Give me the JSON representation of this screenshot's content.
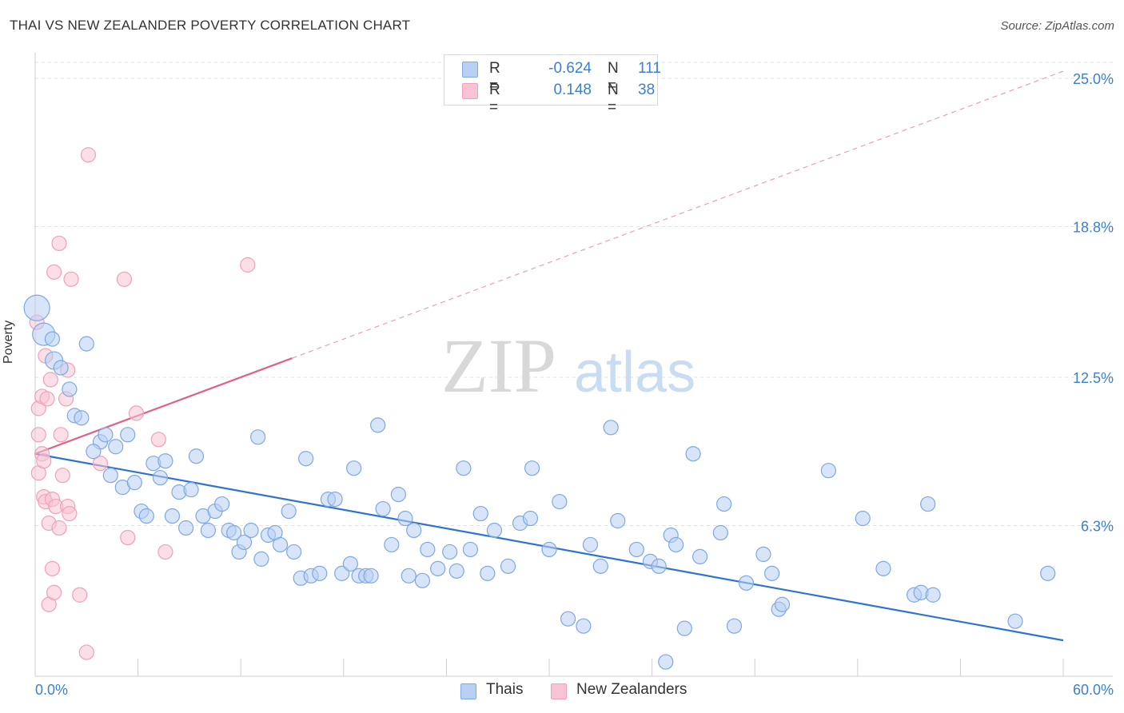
{
  "header": {
    "title": "THAI VS NEW ZEALANDER POVERTY CORRELATION CHART",
    "source": "Source: ZipAtlas.com"
  },
  "watermark": {
    "zip": "ZIP",
    "atlas": "atlas"
  },
  "legend": {
    "rows": [
      {
        "r_label": "R =",
        "r_value": "-0.624",
        "n_label": "N =",
        "n_value": "111",
        "color": "#b8d0f4"
      },
      {
        "r_label": "R =",
        "r_value": "0.148",
        "n_label": "N =",
        "n_value": "38",
        "color": "#f8c4d4"
      }
    ]
  },
  "bottom_legend": {
    "thais": "Thais",
    "nz": "New Zealanders"
  },
  "chart_data": {
    "type": "scatter",
    "title": "THAI VS NEW ZEALANDER POVERTY CORRELATION CHART",
    "xlabel": "",
    "ylabel": "Poverty",
    "xlim": [
      0,
      60
    ],
    "ylim": [
      0,
      26
    ],
    "x_tick_labels": [
      "0.0%",
      "60.0%"
    ],
    "y_ticks": [
      {
        "value": 6.3,
        "label": "6.3%"
      },
      {
        "value": 12.5,
        "label": "12.5%"
      },
      {
        "value": 18.8,
        "label": "18.8%"
      },
      {
        "value": 25.0,
        "label": "25.0%"
      }
    ],
    "grid": true,
    "legend_position": "top-center",
    "series": [
      {
        "name": "Thais",
        "color": "#7fa8e0",
        "fill": "#b8d0f4",
        "trend": {
          "x": [
            0,
            60
          ],
          "y": [
            9.3,
            1.5
          ],
          "style": "solid",
          "color": "#2f73d1"
        },
        "points": [
          [
            0.1,
            15.4,
            16
          ],
          [
            0.5,
            14.3,
            14
          ],
          [
            1.1,
            13.2,
            11
          ],
          [
            1.5,
            12.9,
            9
          ],
          [
            3.0,
            13.9,
            9
          ],
          [
            2.0,
            12.0,
            9
          ],
          [
            2.3,
            10.9,
            9
          ],
          [
            2.7,
            10.8,
            9
          ],
          [
            3.8,
            9.8,
            9
          ],
          [
            4.1,
            10.1,
            9
          ],
          [
            3.4,
            9.4,
            9
          ],
          [
            4.7,
            9.6,
            9
          ],
          [
            5.4,
            10.1,
            9
          ],
          [
            4.4,
            8.4,
            9
          ],
          [
            5.1,
            7.9,
            9
          ],
          [
            5.8,
            8.1,
            9
          ],
          [
            6.2,
            6.9,
            9
          ],
          [
            6.5,
            6.7,
            9
          ],
          [
            6.9,
            8.9,
            9
          ],
          [
            7.3,
            8.3,
            9
          ],
          [
            7.6,
            9.0,
            9
          ],
          [
            8.0,
            6.7,
            9
          ],
          [
            8.4,
            7.7,
            9
          ],
          [
            8.8,
            6.2,
            9
          ],
          [
            9.1,
            7.8,
            9
          ],
          [
            9.4,
            9.2,
            9
          ],
          [
            9.8,
            6.7,
            9
          ],
          [
            10.1,
            6.1,
            9
          ],
          [
            10.5,
            6.9,
            9
          ],
          [
            10.9,
            7.2,
            9
          ],
          [
            11.3,
            6.1,
            9
          ],
          [
            11.6,
            6.0,
            9
          ],
          [
            11.9,
            5.2,
            9
          ],
          [
            12.2,
            5.6,
            9
          ],
          [
            12.6,
            6.1,
            9
          ],
          [
            13.0,
            10.0,
            9
          ],
          [
            13.2,
            4.9,
            9
          ],
          [
            13.6,
            5.9,
            9
          ],
          [
            14.0,
            6.0,
            9
          ],
          [
            14.3,
            5.5,
            9
          ],
          [
            14.8,
            6.9,
            9
          ],
          [
            15.1,
            5.2,
            9
          ],
          [
            15.5,
            4.1,
            9
          ],
          [
            15.8,
            9.1,
            9
          ],
          [
            16.1,
            4.2,
            9
          ],
          [
            16.6,
            4.3,
            9
          ],
          [
            17.1,
            7.4,
            9
          ],
          [
            17.5,
            7.4,
            9
          ],
          [
            17.9,
            4.3,
            9
          ],
          [
            18.4,
            4.7,
            9
          ],
          [
            18.6,
            8.7,
            9
          ],
          [
            18.9,
            4.2,
            9
          ],
          [
            19.3,
            4.2,
            9
          ],
          [
            19.6,
            4.2,
            9
          ],
          [
            20.0,
            10.5,
            9
          ],
          [
            20.3,
            7.0,
            9
          ],
          [
            20.8,
            5.5,
            9
          ],
          [
            21.2,
            7.6,
            9
          ],
          [
            21.6,
            6.6,
            9
          ],
          [
            21.8,
            4.2,
            9
          ],
          [
            22.1,
            6.1,
            9
          ],
          [
            22.6,
            4.0,
            9
          ],
          [
            22.9,
            5.3,
            9
          ],
          [
            23.5,
            4.5,
            9
          ],
          [
            24.2,
            5.2,
            9
          ],
          [
            24.6,
            4.4,
            9
          ],
          [
            25.0,
            8.7,
            9
          ],
          [
            25.4,
            5.3,
            9
          ],
          [
            26.0,
            6.8,
            9
          ],
          [
            26.4,
            4.3,
            9
          ],
          [
            26.8,
            6.1,
            9
          ],
          [
            27.6,
            4.6,
            9
          ],
          [
            28.3,
            6.4,
            9
          ],
          [
            28.9,
            6.6,
            9
          ],
          [
            29.0,
            8.7,
            9
          ],
          [
            30.0,
            5.3,
            9
          ],
          [
            30.6,
            7.3,
            9
          ],
          [
            31.1,
            2.4,
            9
          ],
          [
            32.0,
            2.1,
            9
          ],
          [
            32.4,
            5.5,
            9
          ],
          [
            33.0,
            4.6,
            9
          ],
          [
            33.6,
            10.4,
            9
          ],
          [
            34.0,
            6.5,
            9
          ],
          [
            35.1,
            5.3,
            9
          ],
          [
            35.9,
            4.8,
            9
          ],
          [
            36.4,
            4.6,
            9
          ],
          [
            36.8,
            0.6,
            9
          ],
          [
            37.1,
            5.9,
            9
          ],
          [
            37.4,
            5.5,
            9
          ],
          [
            37.9,
            2.0,
            9
          ],
          [
            38.4,
            9.3,
            9
          ],
          [
            38.8,
            5.0,
            9
          ],
          [
            40.0,
            6.0,
            9
          ],
          [
            40.2,
            7.2,
            9
          ],
          [
            40.8,
            2.1,
            9
          ],
          [
            41.5,
            3.9,
            9
          ],
          [
            42.5,
            5.1,
            9
          ],
          [
            43.0,
            4.3,
            9
          ],
          [
            43.4,
            2.8,
            9
          ],
          [
            43.6,
            3.0,
            9
          ],
          [
            46.3,
            8.6,
            9
          ],
          [
            48.3,
            6.6,
            9
          ],
          [
            49.5,
            4.5,
            9
          ],
          [
            51.3,
            3.4,
            9
          ],
          [
            51.7,
            3.5,
            9
          ],
          [
            52.1,
            7.2,
            9
          ],
          [
            52.4,
            3.4,
            9
          ],
          [
            57.2,
            2.3,
            9
          ],
          [
            59.1,
            4.3,
            9
          ],
          [
            1.0,
            14.1,
            9
          ]
        ]
      },
      {
        "name": "New Zealanders",
        "color": "#f0a0b8",
        "fill": "#f8c4d4",
        "trend_solid": {
          "x": [
            0,
            15.0
          ],
          "y": [
            9.3,
            13.3
          ],
          "style": "solid",
          "color": "#e0608a"
        },
        "trend_dashed": {
          "x": [
            15.0,
            60
          ],
          "y": [
            13.3,
            25.3
          ],
          "style": "dashed",
          "color": "#e8a0b6"
        },
        "points": [
          [
            0.1,
            14.8,
            9
          ],
          [
            0.2,
            11.2,
            9
          ],
          [
            0.2,
            10.1,
            9
          ],
          [
            0.2,
            8.5,
            9
          ],
          [
            0.4,
            9.3,
            9
          ],
          [
            0.4,
            11.7,
            9
          ],
          [
            0.5,
            9.0,
            9
          ],
          [
            0.5,
            7.5,
            9
          ],
          [
            0.6,
            13.4,
            9
          ],
          [
            0.6,
            7.3,
            9
          ],
          [
            0.7,
            11.6,
            9
          ],
          [
            0.8,
            6.4,
            9
          ],
          [
            0.8,
            3.0,
            9
          ],
          [
            0.9,
            12.4,
            9
          ],
          [
            1.0,
            7.4,
            9
          ],
          [
            1.0,
            4.5,
            9
          ],
          [
            1.1,
            3.5,
            9
          ],
          [
            1.1,
            16.9,
            9
          ],
          [
            1.2,
            7.1,
            9
          ],
          [
            1.4,
            6.2,
            9
          ],
          [
            1.4,
            18.1,
            9
          ],
          [
            1.5,
            10.1,
            9
          ],
          [
            1.6,
            8.4,
            9
          ],
          [
            1.8,
            11.6,
            9
          ],
          [
            1.9,
            12.8,
            9
          ],
          [
            1.9,
            7.1,
            9
          ],
          [
            2.0,
            6.8,
            9
          ],
          [
            2.1,
            16.6,
            9
          ],
          [
            2.6,
            3.4,
            9
          ],
          [
            3.0,
            1.0,
            9
          ],
          [
            3.1,
            21.8,
            9
          ],
          [
            3.8,
            8.9,
            9
          ],
          [
            5.2,
            16.6,
            9
          ],
          [
            5.4,
            5.8,
            9
          ],
          [
            5.9,
            11.0,
            9
          ],
          [
            7.2,
            9.9,
            9
          ],
          [
            7.6,
            5.2,
            9
          ],
          [
            12.4,
            17.2,
            9
          ]
        ]
      }
    ]
  }
}
